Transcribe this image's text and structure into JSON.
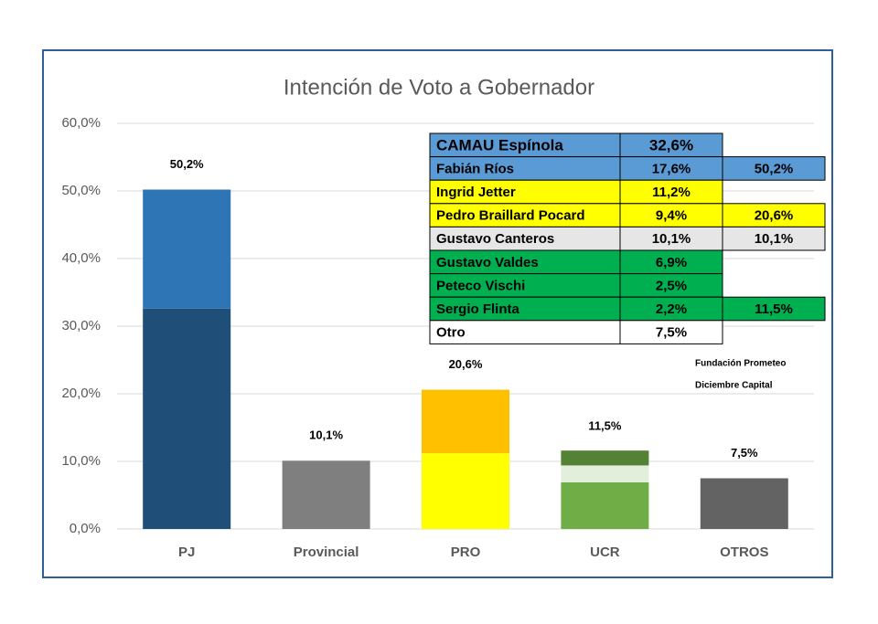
{
  "chart_data": {
    "type": "stacked-bar",
    "title": "Intención de Voto a Gobernador",
    "categories": [
      "PJ",
      "Provincial",
      "PRO",
      "UCR",
      "OTROS"
    ],
    "series": [
      {
        "name": "CAMAU Espínola",
        "color": "#1f4e79",
        "values": [
          32.6,
          null,
          null,
          null,
          null
        ]
      },
      {
        "name": "Fabián Ríos",
        "color": "#2e75b6",
        "values": [
          17.6,
          null,
          null,
          null,
          null
        ]
      },
      {
        "name": "Gustavo Canteros",
        "color": "#7f7f7f",
        "values": [
          null,
          10.1,
          null,
          null,
          null
        ]
      },
      {
        "name": "Ingrid Jetter",
        "color": "#ffff00",
        "values": [
          null,
          null,
          11.2,
          null,
          null
        ]
      },
      {
        "name": "Pedro Braillard Pocard",
        "color": "#ffc000",
        "values": [
          null,
          null,
          9.4,
          null,
          null
        ]
      },
      {
        "name": "Gustavo Valdes",
        "color": "#70ad47",
        "values": [
          null,
          null,
          null,
          6.9,
          null
        ]
      },
      {
        "name": "Peteco Vischi",
        "color": "#e2efda",
        "values": [
          null,
          null,
          null,
          2.5,
          null
        ]
      },
      {
        "name": "Sergio Flinta",
        "color": "#548235",
        "values": [
          null,
          null,
          null,
          2.2,
          null
        ]
      },
      {
        "name": "Otro",
        "color": "#636363",
        "values": [
          null,
          null,
          null,
          null,
          7.5
        ]
      }
    ],
    "totals": [
      50.2,
      10.1,
      20.6,
      11.5,
      7.5
    ],
    "total_labels": [
      "50,2%",
      "10,1%",
      "20,6%",
      "11,5%",
      "7,5%"
    ],
    "ylim": [
      0,
      60
    ],
    "yticks": [
      {
        "value": 0,
        "label": "0,0%"
      },
      {
        "value": 10,
        "label": "10,0%"
      },
      {
        "value": 20,
        "label": "20,0%"
      },
      {
        "value": 30,
        "label": "30,0%"
      },
      {
        "value": 40,
        "label": "40,0%"
      },
      {
        "value": 50,
        "label": "50,0%"
      },
      {
        "value": 60,
        "label": "60,0%"
      }
    ],
    "grid": true
  },
  "table": {
    "rows": [
      {
        "cells": [
          "CAMAU Espínola",
          "32,6%"
        ],
        "color": "#5b9bd5"
      },
      {
        "cells": [
          "Fabián Ríos",
          "17,6%",
          "50,2%"
        ],
        "color": "#5b9bd5"
      },
      {
        "cells": [
          "Ingrid Jetter",
          "11,2%"
        ],
        "color": "#ffff00"
      },
      {
        "cells": [
          "Pedro Braillard Pocard",
          "9,4%",
          "20,6%"
        ],
        "color": "#ffff00"
      },
      {
        "cells": [
          "Gustavo Canteros",
          "10,1%",
          "10,1%"
        ],
        "color": "#e7e6e6"
      },
      {
        "cells": [
          "Gustavo Valdes",
          "6,9%"
        ],
        "color": "#00b050"
      },
      {
        "cells": [
          "Peteco Vischi",
          "2,5%"
        ],
        "color": "#00b050"
      },
      {
        "cells": [
          "Sergio Flinta",
          "2,2%",
          "11,5%"
        ],
        "color": "#00b050"
      },
      {
        "cells": [
          "Otro",
          "7,5%"
        ],
        "color": "#ffffff"
      }
    ]
  },
  "notes": [
    "Fundación Prometeo",
    "Diciembre Capital"
  ]
}
